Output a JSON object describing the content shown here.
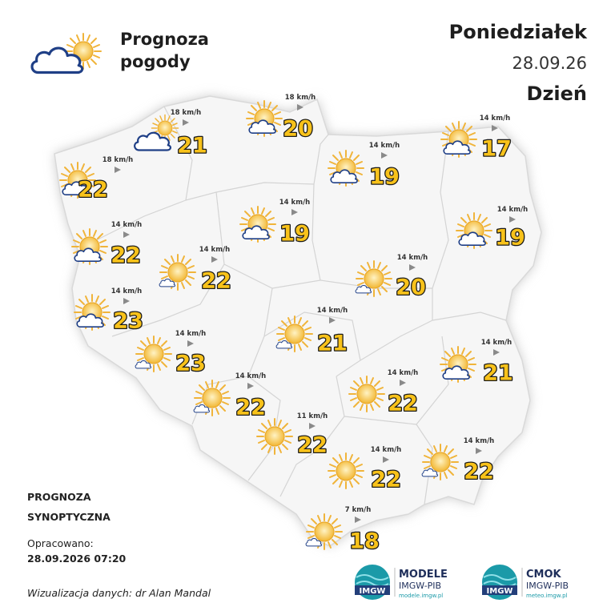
{
  "header": {
    "title_line1": "Prognoza",
    "title_line2": "pogody",
    "day": "Poniedziałek",
    "date": "28.09.26",
    "period": "Dzień"
  },
  "stations": [
    {
      "temp": "21",
      "wind": "18 km/h",
      "icon": "cloud"
    },
    {
      "temp": "20",
      "wind": "18 km/h",
      "icon": "sun-cloud"
    },
    {
      "temp": "17",
      "wind": "14 km/h",
      "icon": "sun-cloud"
    },
    {
      "temp": "22",
      "wind": "18 km/h",
      "icon": "sun-cloud"
    },
    {
      "temp": "19",
      "wind": "14 km/h",
      "icon": "sun-cloud"
    },
    {
      "temp": "19",
      "wind": "14 km/h",
      "icon": "sun-cloud"
    },
    {
      "temp": "19",
      "wind": "14 km/h",
      "icon": "sun-cloud"
    },
    {
      "temp": "22",
      "wind": "14 km/h",
      "icon": "sun-cloud"
    },
    {
      "temp": "22",
      "wind": "14 km/h",
      "icon": "sun-small-cloud"
    },
    {
      "temp": "20",
      "wind": "14 km/h",
      "icon": "sun-small-cloud"
    },
    {
      "temp": "23",
      "wind": "14 km/h",
      "icon": "sun-cloud"
    },
    {
      "temp": "21",
      "wind": "14 km/h",
      "icon": "sun-small-cloud"
    },
    {
      "temp": "23",
      "wind": "14 km/h",
      "icon": "sun-small-cloud"
    },
    {
      "temp": "21",
      "wind": "14 km/h",
      "icon": "sun-cloud"
    },
    {
      "temp": "22",
      "wind": "14 km/h",
      "icon": "sun-small-cloud"
    },
    {
      "temp": "22",
      "wind": "14 km/h",
      "icon": "sun"
    },
    {
      "temp": "22",
      "wind": "11 km/h",
      "icon": "sun"
    },
    {
      "temp": "22",
      "wind": "14 km/h",
      "icon": "sun"
    },
    {
      "temp": "22",
      "wind": "14 km/h",
      "icon": "sun-small-cloud"
    },
    {
      "temp": "18",
      "wind": "7 km/h",
      "icon": "sun-small-cloud"
    }
  ],
  "footer": {
    "type_line1": "PROGNOZA",
    "type_line2": "SYNOPTYCZNA",
    "prepared_label": "Opracowano:",
    "prepared_at": "28.09.2026 07:20",
    "credit": "Wizualizacja danych: dr Alan Mandal"
  },
  "logos": [
    {
      "badge": "IMGW",
      "name": "MODELE",
      "org": "IMGW-PIB",
      "url": "modele.imgw.pl"
    },
    {
      "badge": "IMGW",
      "name": "CMOK",
      "org": "IMGW-PIB",
      "url": "meteo.imgw.pl"
    }
  ]
}
